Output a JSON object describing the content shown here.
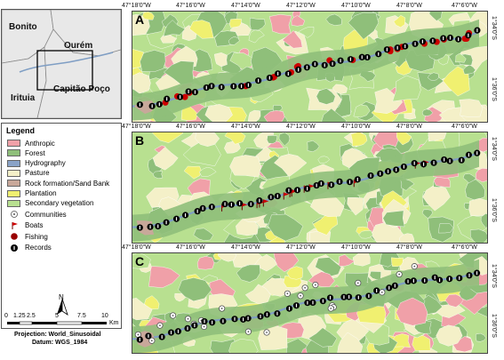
{
  "locator": {
    "labels": [
      "Bonito",
      "Ourém",
      "Irituia",
      "Capitão Poço"
    ]
  },
  "legend": {
    "title": "Legend",
    "items": [
      {
        "label": "Anthropic",
        "color": "#f0a0a8"
      },
      {
        "label": "Forest",
        "color": "#8fbf7a"
      },
      {
        "label": "Hydrography",
        "color": "#8aa3c8"
      },
      {
        "label": "Pasture",
        "color": "#f4f0c8"
      },
      {
        "label": "Rock formation/Sand Bank",
        "color": "#c8a89a"
      },
      {
        "label": "Plantation",
        "color": "#f0f070"
      },
      {
        "label": "Secondary vegetation",
        "color": "#b8e090"
      }
    ],
    "symbols": [
      {
        "label": "Communities",
        "icon": "community-icon"
      },
      {
        "label": "Boats",
        "icon": "boat-flag-icon",
        "color": "#cc0000"
      },
      {
        "label": "Fishing",
        "icon": "fishing-dot-icon",
        "color": "#990000"
      },
      {
        "label": "Records",
        "icon": "record-icon"
      }
    ]
  },
  "scale": {
    "north": "N",
    "ticks": [
      "0",
      "1.25",
      "2.5",
      "5",
      "7.5",
      "10"
    ],
    "unit": "Km",
    "projection": "Projection: World_Sinusoidal",
    "datum": "Datum: WGS_1984"
  },
  "panels": [
    {
      "letter": "A",
      "lon": [
        "47°18'0\"W",
        "47°16'0\"W",
        "47°14'0\"W",
        "47°12'0\"W",
        "47°10'0\"W",
        "47°8'0\"W",
        "47°6'0\"W"
      ],
      "lat": [
        "1°34'0\"S",
        "1°36'0\"S"
      ]
    },
    {
      "letter": "B",
      "lon": [
        "47°18'0\"W",
        "47°16'0\"W",
        "47°14'0\"W",
        "47°12'0\"W",
        "47°10'0\"W",
        "47°8'0\"W",
        "47°6'0\"W"
      ],
      "lat": [
        "1°34'0\"S",
        "1°36'0\"S"
      ]
    },
    {
      "letter": "C",
      "lon": [
        "47°18'0\"W",
        "47°16'0\"W",
        "47°14'0\"W",
        "47°12'0\"W",
        "47°10'0\"W",
        "47°8'0\"W",
        "47°6'0\"W"
      ],
      "lat": [
        "1°34'0\"S",
        "1°36'0\"S"
      ]
    }
  ],
  "colors": {
    "forest": "#8fbf7a",
    "secondary": "#b8e090",
    "anthropic": "#f0a0a8",
    "pasture": "#f4f0c8",
    "plantation": "#f0f070",
    "rock": "#c8a89a",
    "river": "#7f9ec4"
  }
}
